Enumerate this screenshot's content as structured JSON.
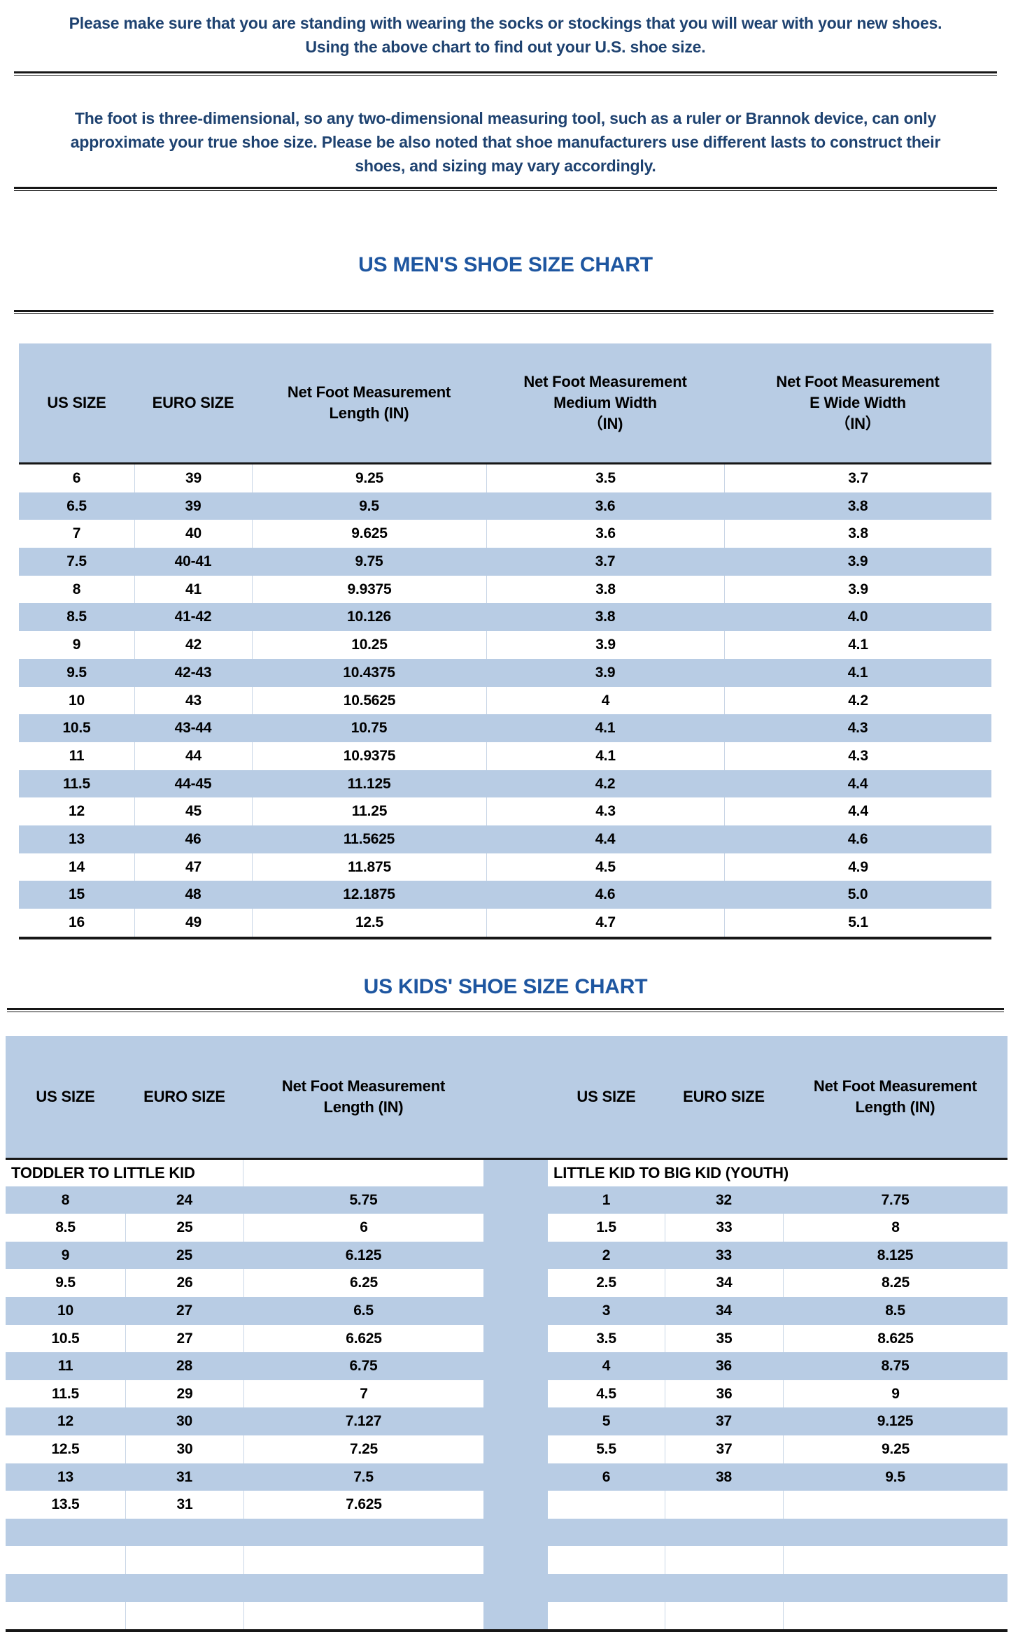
{
  "document": {
    "intro_note": {
      "lines": [
        "Please make sure that you are standing with wearing the socks or stockings that you will wear with your new shoes.",
        "Using the above chart to find out your U.S. shoe size."
      ]
    },
    "disclaimer": {
      "lines": [
        "The foot is three-dimensional, so any two-dimensional measuring tool, such as a ruler or Brannok device, can only",
        "approximate your true shoe size. Please be also noted that shoe manufacturers use different lasts to construct their",
        "shoes, and sizing may vary accordingly."
      ]
    }
  },
  "mens_chart": {
    "title": "US MEN'S SHOE SIZE CHART",
    "columns": [
      "US SIZE",
      "EURO SIZE",
      "Net Foot Measurement\nLength (IN)",
      "Net Foot Measurement\nMedium Width\n（IN)",
      "Net Foot Measurement\nE Wide Width\n（IN）"
    ],
    "rows": [
      [
        "6",
        "39",
        "9.25",
        "3.5",
        "3.7"
      ],
      [
        "6.5",
        "39",
        "9.5",
        "3.6",
        "3.8"
      ],
      [
        "7",
        "40",
        "9.625",
        "3.6",
        "3.8"
      ],
      [
        "7.5",
        "40-41",
        "9.75",
        "3.7",
        "3.9"
      ],
      [
        "8",
        "41",
        "9.9375",
        "3.8",
        "3.9"
      ],
      [
        "8.5",
        "41-42",
        "10.126",
        "3.8",
        "4.0"
      ],
      [
        "9",
        "42",
        "10.25",
        "3.9",
        "4.1"
      ],
      [
        "9.5",
        "42-43",
        "10.4375",
        "3.9",
        "4.1"
      ],
      [
        "10",
        "43",
        "10.5625",
        "4",
        "4.2"
      ],
      [
        "10.5",
        "43-44",
        "10.75",
        "4.1",
        "4.3"
      ],
      [
        "11",
        "44",
        "10.9375",
        "4.1",
        "4.3"
      ],
      [
        "11.5",
        "44-45",
        "11.125",
        "4.2",
        "4.4"
      ],
      [
        "12",
        "45",
        "11.25",
        "4.3",
        "4.4"
      ],
      [
        "13",
        "46",
        "11.5625",
        "4.4",
        "4.6"
      ],
      [
        "14",
        "47",
        "11.875",
        "4.5",
        "4.9"
      ],
      [
        "15",
        "48",
        "12.1875",
        "4.6",
        "5.0"
      ],
      [
        "16",
        "49",
        "12.5",
        "4.7",
        "5.1"
      ]
    ]
  },
  "kids_chart": {
    "title": "US KIDS' SHOE SIZE CHART",
    "columns": [
      "US SIZE",
      "EURO SIZE",
      "Net Foot Measurement\nLength (IN)",
      "US SIZE",
      "EURO SIZE",
      "Net Foot Measurement\nLength (IN)"
    ],
    "left_section_label": "TODDLER TO LITTLE KID",
    "right_section_label": "LITTLE KID TO BIG KID (YOUTH)",
    "rows": [
      [
        "8",
        "24",
        "5.75",
        "1",
        "32",
        "7.75"
      ],
      [
        "8.5",
        "25",
        "6",
        "1.5",
        "33",
        "8"
      ],
      [
        "9",
        "25",
        "6.125",
        "2",
        "33",
        "8.125"
      ],
      [
        "9.5",
        "26",
        "6.25",
        "2.5",
        "34",
        "8.25"
      ],
      [
        "10",
        "27",
        "6.5",
        "3",
        "34",
        "8.5"
      ],
      [
        "10.5",
        "27",
        "6.625",
        "3.5",
        "35",
        "8.625"
      ],
      [
        "11",
        "28",
        "6.75",
        "4",
        "36",
        "8.75"
      ],
      [
        "11.5",
        "29",
        "7",
        "4.5",
        "36",
        "9"
      ],
      [
        "12",
        "30",
        "7.127",
        "5",
        "37",
        "9.125"
      ],
      [
        "12.5",
        "30",
        "7.25",
        "5.5",
        "37",
        "9.25"
      ],
      [
        "13",
        "31",
        "7.5",
        "6",
        "38",
        "9.5"
      ],
      [
        "13.5",
        "31",
        "7.625",
        "",
        "",
        ""
      ]
    ],
    "trailing_empty_rows": 4
  },
  "colors": {
    "navy_text": "#1e4270",
    "title_blue": "#1e56a0",
    "stripe_blue": "#b8cce4",
    "grid_line": "#c9d6e6",
    "border_dark": "#171717"
  }
}
